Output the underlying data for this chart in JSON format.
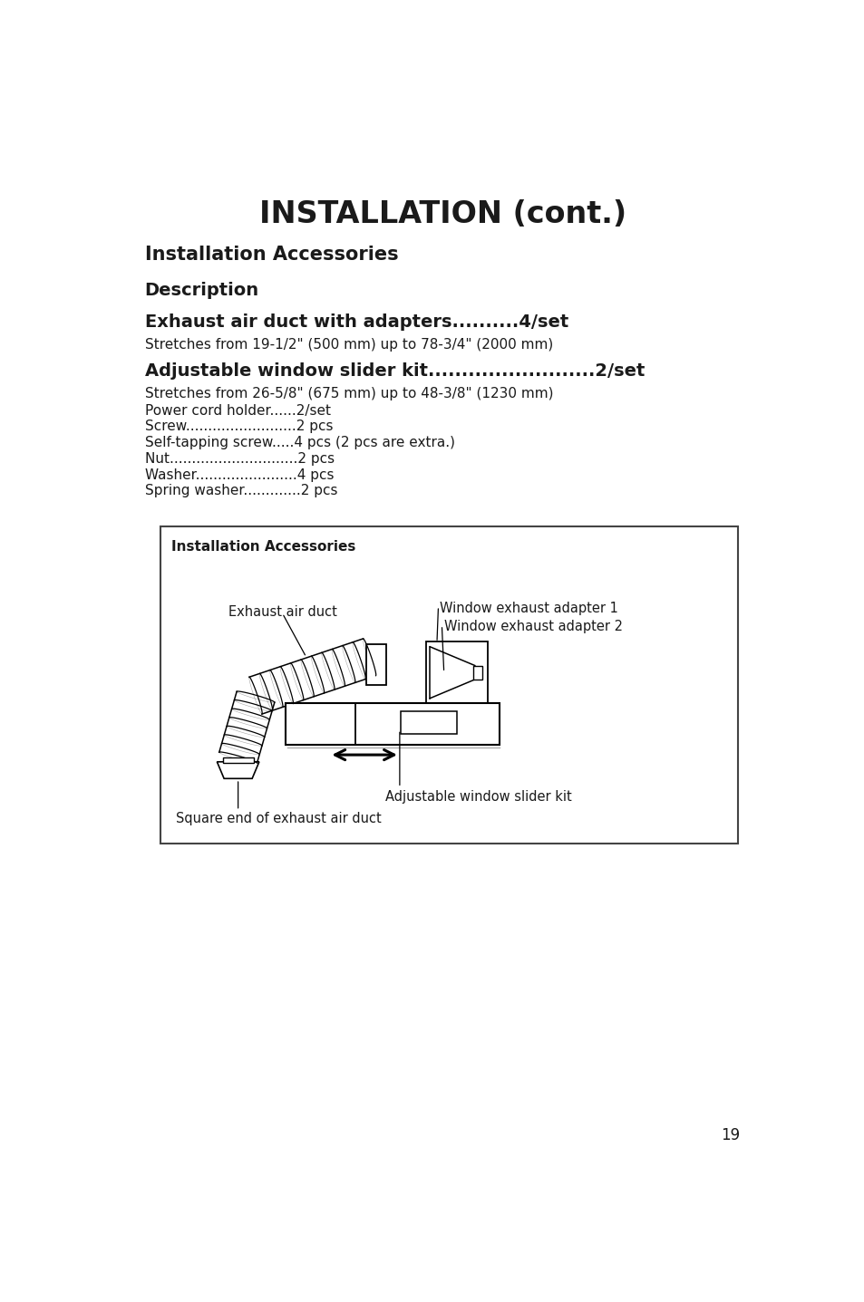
{
  "title": "INSTALLATION (cont.)",
  "section1": "Installation Accessories",
  "section2": "Description",
  "item1_title": "Exhaust air duct with adapters..........4/set",
  "item1_desc": "Stretches from 19-1/2\" (500 mm) up to 78-3/4\" (2000 mm)",
  "item2_title": "Adjustable window slider kit.........................2/set",
  "item2_lines": [
    "Stretches from 26-5/8\" (675 mm) up to 48-3/8\" (1230 mm)",
    "Power cord holder......2/set",
    "Screw.........................2 pcs",
    "Self-tapping screw.....4 pcs (2 pcs are extra.)",
    "Nut.............................2 pcs",
    "Washer.......................4 pcs",
    "Spring washer.............2 pcs"
  ],
  "box_title": "Installation Accessories",
  "label_exhaust": "Exhaust air duct",
  "label_adapter1": "Window exhaust adapter 1",
  "label_adapter2": "Window exhaust adapter 2",
  "label_square": "Square end of exhaust air duct",
  "label_slider": "Adjustable window slider kit",
  "page_number": "19",
  "bg_color": "#ffffff",
  "text_color": "#1a1a1a"
}
